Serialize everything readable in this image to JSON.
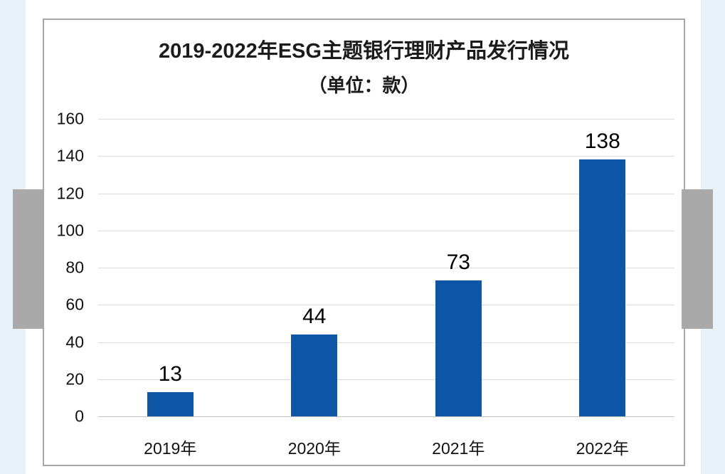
{
  "page": {
    "background": "#ffffff",
    "side_strip_color": "#e9f1f8",
    "handle_color": "#a9a9a9",
    "frame_border_color": "#a6a6a6",
    "gridline_color": "#dcdcdc"
  },
  "chart_data": {
    "type": "bar",
    "title": "2019-2022年ESG主题银行理财产品发行情况",
    "subtitle": "（单位：款）",
    "categories": [
      "2019年",
      "2020年",
      "2021年",
      "2022年"
    ],
    "values": [
      13,
      44,
      73,
      138
    ],
    "ylim": [
      0,
      160
    ],
    "yticks": [
      0,
      20,
      40,
      60,
      80,
      100,
      120,
      140,
      160
    ],
    "xlabel": "",
    "ylabel": "",
    "bar_color": "#0d55a5",
    "grid": true,
    "legend_position": "none",
    "data_labels": true
  }
}
